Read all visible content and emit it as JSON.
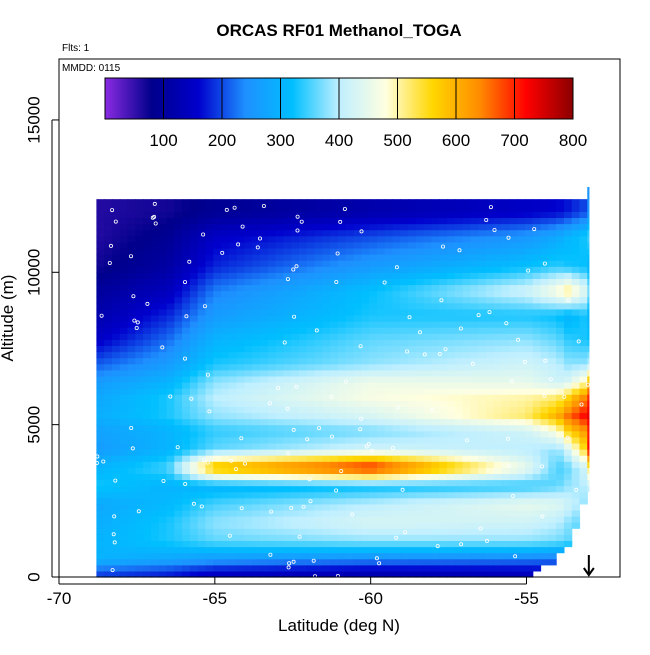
{
  "chart_data": {
    "type": "heatmap",
    "title": "ORCAS RF01 Methanol_TOGA",
    "annotations": [
      "Flts: 1",
      "MMDD: 0115"
    ],
    "xlabel": "Latitude (deg N)",
    "ylabel": "Altitude (m)",
    "xlim": [
      -70,
      -52
    ],
    "ylim": [
      0,
      17000
    ],
    "x_ticks": [
      -70,
      -65,
      -60,
      -55
    ],
    "x_tick_labels": [
      "-70",
      "-65",
      "-60",
      "-55"
    ],
    "y_ticks": [
      0,
      5000,
      10000,
      15000
    ],
    "y_tick_labels": [
      "0",
      "5000",
      "10000",
      "15000"
    ],
    "colorbar": {
      "min": 0,
      "max": 800,
      "ticks": [
        100,
        200,
        300,
        400,
        500,
        600,
        700,
        800
      ],
      "tick_labels": [
        "100",
        "200",
        "300",
        "400",
        "500",
        "600",
        "700",
        "800"
      ],
      "colors": [
        "#8a2be2",
        "#00008b",
        "#0000cd",
        "#1e90ff",
        "#00bfff",
        "#bfefff",
        "#ffffe0",
        "#ffd700",
        "#ff8c00",
        "#ff0000",
        "#8b0000"
      ]
    },
    "grid": false,
    "legend": "top (colorbar inside plot)",
    "marker_latitude": -53,
    "profile": {
      "lat": [
        -68.8,
        -66.5,
        -65,
        -60,
        -55,
        -54,
        -53.7,
        -53.1,
        -53.0
      ],
      "alt_top": [
        12400,
        12400,
        12400,
        12400,
        12400,
        12400,
        12400,
        12500,
        12800
      ],
      "alt_bottom": [
        0,
        0,
        0,
        0,
        0,
        600,
        1000,
        2500,
        2800
      ]
    },
    "layers": [
      {
        "alt": 12000,
        "values": [
          60,
          70,
          90,
          120,
          150,
          160,
          170,
          200,
          250
        ]
      },
      {
        "alt": 11200,
        "values": [
          60,
          90,
          150,
          200,
          250,
          280,
          300,
          330,
          350
        ]
      },
      {
        "alt": 10200,
        "values": [
          70,
          110,
          180,
          260,
          320,
          340,
          330,
          320,
          300
        ]
      },
      {
        "alt": 9400,
        "values": [
          100,
          140,
          230,
          320,
          420,
          480,
          520,
          440,
          380
        ]
      },
      {
        "alt": 8600,
        "values": [
          120,
          180,
          260,
          330,
          330,
          320,
          300,
          330,
          300
        ]
      },
      {
        "alt": 7800,
        "values": [
          150,
          220,
          300,
          360,
          380,
          360,
          340,
          330,
          320
        ]
      },
      {
        "alt": 7000,
        "values": [
          210,
          260,
          330,
          380,
          420,
          400,
          380,
          380,
          400
        ]
      },
      {
        "alt": 6400,
        "values": [
          260,
          300,
          380,
          460,
          450,
          420,
          430,
          500,
          600
        ]
      },
      {
        "alt": 5900,
        "values": [
          280,
          330,
          400,
          470,
          500,
          520,
          560,
          650,
          700
        ]
      },
      {
        "alt": 5300,
        "values": [
          290,
          330,
          380,
          430,
          520,
          600,
          650,
          720,
          740
        ]
      },
      {
        "alt": 4800,
        "values": [
          270,
          300,
          340,
          370,
          420,
          480,
          560,
          630,
          700
        ]
      },
      {
        "alt": 4200,
        "values": [
          260,
          300,
          360,
          420,
          400,
          380,
          420,
          560,
          720
        ]
      },
      {
        "alt": 3600,
        "values": [
          300,
          350,
          600,
          720,
          450,
          350,
          360,
          420,
          520
        ]
      },
      {
        "alt": 3000,
        "values": [
          330,
          300,
          300,
          320,
          340,
          360,
          380,
          400,
          420
        ]
      },
      {
        "alt": 2400,
        "values": [
          280,
          310,
          350,
          400,
          450,
          440,
          420,
          380,
          350
        ]
      },
      {
        "alt": 1800,
        "values": [
          290,
          330,
          380,
          430,
          420,
          400,
          380,
          350,
          320
        ]
      },
      {
        "alt": 1200,
        "values": [
          300,
          330,
          360,
          380,
          380,
          370,
          360,
          340,
          300
        ]
      },
      {
        "alt": 600,
        "values": [
          300,
          280,
          260,
          240,
          230,
          220,
          210,
          200,
          200
        ]
      },
      {
        "alt": 150,
        "values": [
          200,
          180,
          150,
          130,
          140,
          150,
          160,
          170,
          180
        ]
      }
    ]
  }
}
